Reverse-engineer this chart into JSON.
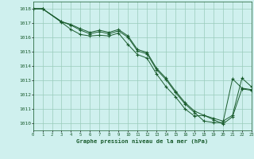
{
  "background_color": "#cff0ee",
  "grid_color": "#99ccbb",
  "line_color": "#1a5c2e",
  "marker_color": "#1a5c2e",
  "title": "Graphe pression niveau de la mer (hPa)",
  "xlim": [
    0,
    23
  ],
  "ylim": [
    1009.5,
    1018.5
  ],
  "yticks": [
    1010,
    1011,
    1012,
    1013,
    1014,
    1015,
    1016,
    1017,
    1018
  ],
  "xticks": [
    0,
    1,
    2,
    3,
    4,
    5,
    6,
    7,
    8,
    9,
    10,
    11,
    12,
    13,
    14,
    15,
    16,
    17,
    18,
    19,
    20,
    21,
    22,
    23
  ],
  "series": [
    {
      "x": [
        0,
        1,
        3,
        4,
        5,
        6,
        7,
        8,
        9,
        10,
        11,
        12,
        13,
        14,
        15,
        16,
        17,
        18,
        19,
        20,
        21,
        22,
        23
      ],
      "y": [
        1018.0,
        1018.0,
        1017.1,
        1016.85,
        1016.5,
        1016.25,
        1016.4,
        1016.25,
        1016.45,
        1016.0,
        1015.05,
        1014.85,
        1013.75,
        1013.05,
        1012.15,
        1011.35,
        1010.75,
        1010.15,
        1010.05,
        1010.05,
        1013.1,
        1012.45,
        1012.35
      ]
    },
    {
      "x": [
        0,
        1,
        3,
        4,
        5,
        6,
        7,
        8,
        9,
        10,
        11,
        12,
        13,
        14,
        15,
        16,
        17,
        18,
        19,
        20,
        21,
        22,
        23
      ],
      "y": [
        1018.0,
        1018.0,
        1017.05,
        1016.55,
        1016.2,
        1016.1,
        1016.15,
        1016.1,
        1016.3,
        1015.5,
        1014.8,
        1014.55,
        1013.45,
        1012.55,
        1011.85,
        1011.0,
        1010.5,
        1010.55,
        1010.25,
        1009.95,
        1010.45,
        1012.4,
        1012.3
      ]
    },
    {
      "x": [
        0,
        1,
        3,
        4,
        5,
        6,
        7,
        8,
        9,
        10,
        11,
        12,
        13,
        14,
        15,
        16,
        17,
        18,
        19,
        20,
        21,
        22,
        23
      ],
      "y": [
        1018.0,
        1018.0,
        1017.1,
        1016.9,
        1016.6,
        1016.35,
        1016.5,
        1016.35,
        1016.55,
        1016.1,
        1015.15,
        1014.95,
        1013.85,
        1013.15,
        1012.25,
        1011.45,
        1010.85,
        1010.55,
        1010.35,
        1010.15,
        1010.55,
        1013.15,
        1012.55
      ]
    }
  ]
}
